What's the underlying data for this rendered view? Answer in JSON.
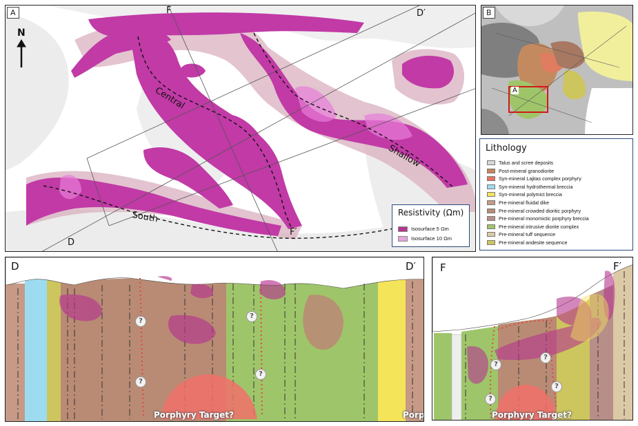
{
  "panel_a": {
    "label": "A",
    "north": "N",
    "section_ends": {
      "f_top": "F",
      "d_prime_top": "D′",
      "d_bottom": "D",
      "f_prime_bottom": "F′"
    },
    "trend_labels": {
      "central": "Central",
      "shallow": "Shallow",
      "south": "South"
    },
    "resistivity_legend": {
      "title": "Resistivity (Ωm)",
      "items": [
        {
          "label": "Isosurface 5 Ωm",
          "color": "#b5368f"
        },
        {
          "label": "Isosurface 10 Ωm",
          "color": "#e6a6d8"
        }
      ]
    }
  },
  "panel_b": {
    "label": "B",
    "inset_box_label": "A",
    "lithology": {
      "title": "Lithology",
      "items": [
        {
          "label": "Talus and scree deposits",
          "color": "#d8d8d8"
        },
        {
          "label": "Post-mineral granodiorite",
          "color": "#c9845c"
        },
        {
          "label": "Syn-mineral Lajitas complex porphyry",
          "color": "#e8705f"
        },
        {
          "label": "Syn-mineral hydrothermal breccia",
          "color": "#9ddcf0"
        },
        {
          "label": "Syn-mineral polymict breccia",
          "color": "#f3e45a"
        },
        {
          "label": "Pre-mineral fluidal dike",
          "color": "#c69a86"
        },
        {
          "label": "Pre-mineral crowded dioritic porphyry",
          "color": "#b98b74"
        },
        {
          "label": "Pre-mineral monomictic porphyry breccia",
          "color": "#b88e88"
        },
        {
          "label": "Pre-mineral intrusive diorite complex",
          "color": "#9fc56a"
        },
        {
          "label": "Pre-mineral tuff sequence",
          "color": "#dcc9a6"
        },
        {
          "label": "Pre-mineral andesite sequence",
          "color": "#cdc55e"
        }
      ]
    }
  },
  "section_dd": {
    "left_label": "D",
    "right_label": "D′",
    "question_mark": "?",
    "target_label": "Porphyry Target?",
    "target_label_clipped": "Porp"
  },
  "section_ff": {
    "left_label": "F",
    "right_label": "F′",
    "question_mark": "?",
    "target_label": "Porphyry Target?"
  }
}
